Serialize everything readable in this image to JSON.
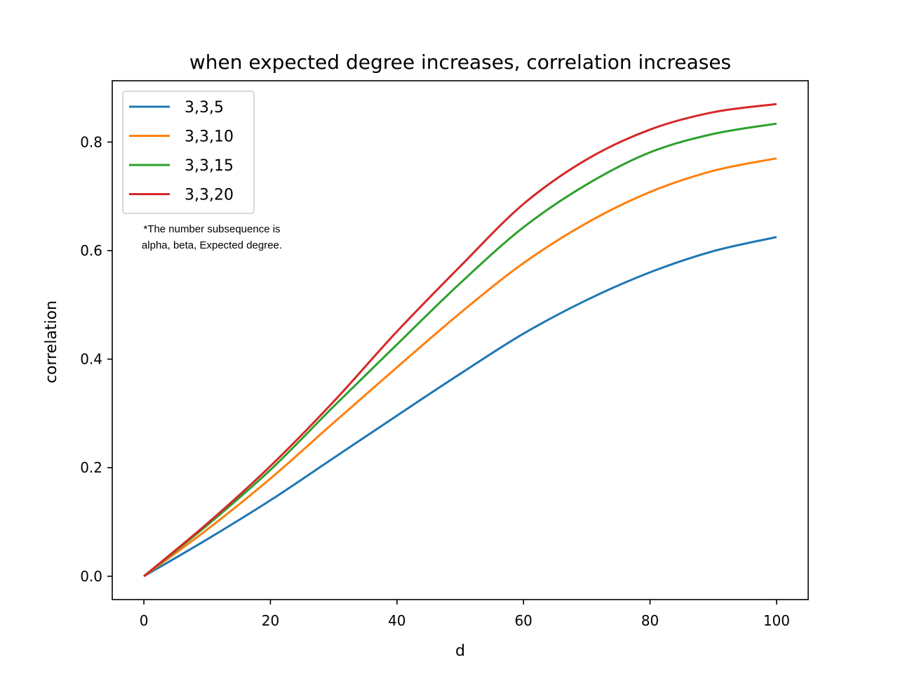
{
  "chart_data": {
    "type": "line",
    "title": "when expected degree increases, correlation increases",
    "xlabel": "d",
    "ylabel": "correlation",
    "xlim": [
      -5,
      105
    ],
    "ylim": [
      -0.043,
      0.913
    ],
    "xticks": [
      0,
      20,
      40,
      60,
      80,
      100
    ],
    "yticks": [
      0.0,
      0.2,
      0.4,
      0.6,
      0.8
    ],
    "xtick_labels": [
      "0",
      "20",
      "40",
      "60",
      "80",
      "100"
    ],
    "ytick_labels": [
      "0.0",
      "0.2",
      "0.4",
      "0.6",
      "0.8"
    ],
    "grid": false,
    "legend_position": "upper-left",
    "x": [
      0,
      10,
      20,
      30,
      40,
      50,
      60,
      70,
      80,
      90,
      100
    ],
    "series": [
      {
        "name": "3,3,5",
        "color": "#1f77b4",
        "values": [
          0.0,
          0.068,
          0.14,
          0.218,
          0.296,
          0.373,
          0.447,
          0.509,
          0.56,
          0.599,
          0.625
        ]
      },
      {
        "name": "3,3,10",
        "color": "#ff7f0e",
        "values": [
          0.0,
          0.086,
          0.18,
          0.283,
          0.385,
          0.485,
          0.577,
          0.651,
          0.708,
          0.747,
          0.77
        ]
      },
      {
        "name": "3,3,15",
        "color": "#2ca02c",
        "values": [
          0.0,
          0.094,
          0.196,
          0.313,
          0.427,
          0.54,
          0.643,
          0.722,
          0.781,
          0.815,
          0.834
        ]
      },
      {
        "name": "3,3,20",
        "color": "#d62728",
        "values": [
          0.0,
          0.097,
          0.203,
          0.322,
          0.451,
          0.571,
          0.686,
          0.768,
          0.823,
          0.855,
          0.87
        ]
      }
    ],
    "annotation": [
      "*The number subsequence is",
      "alpha, beta, Expected degree."
    ]
  }
}
